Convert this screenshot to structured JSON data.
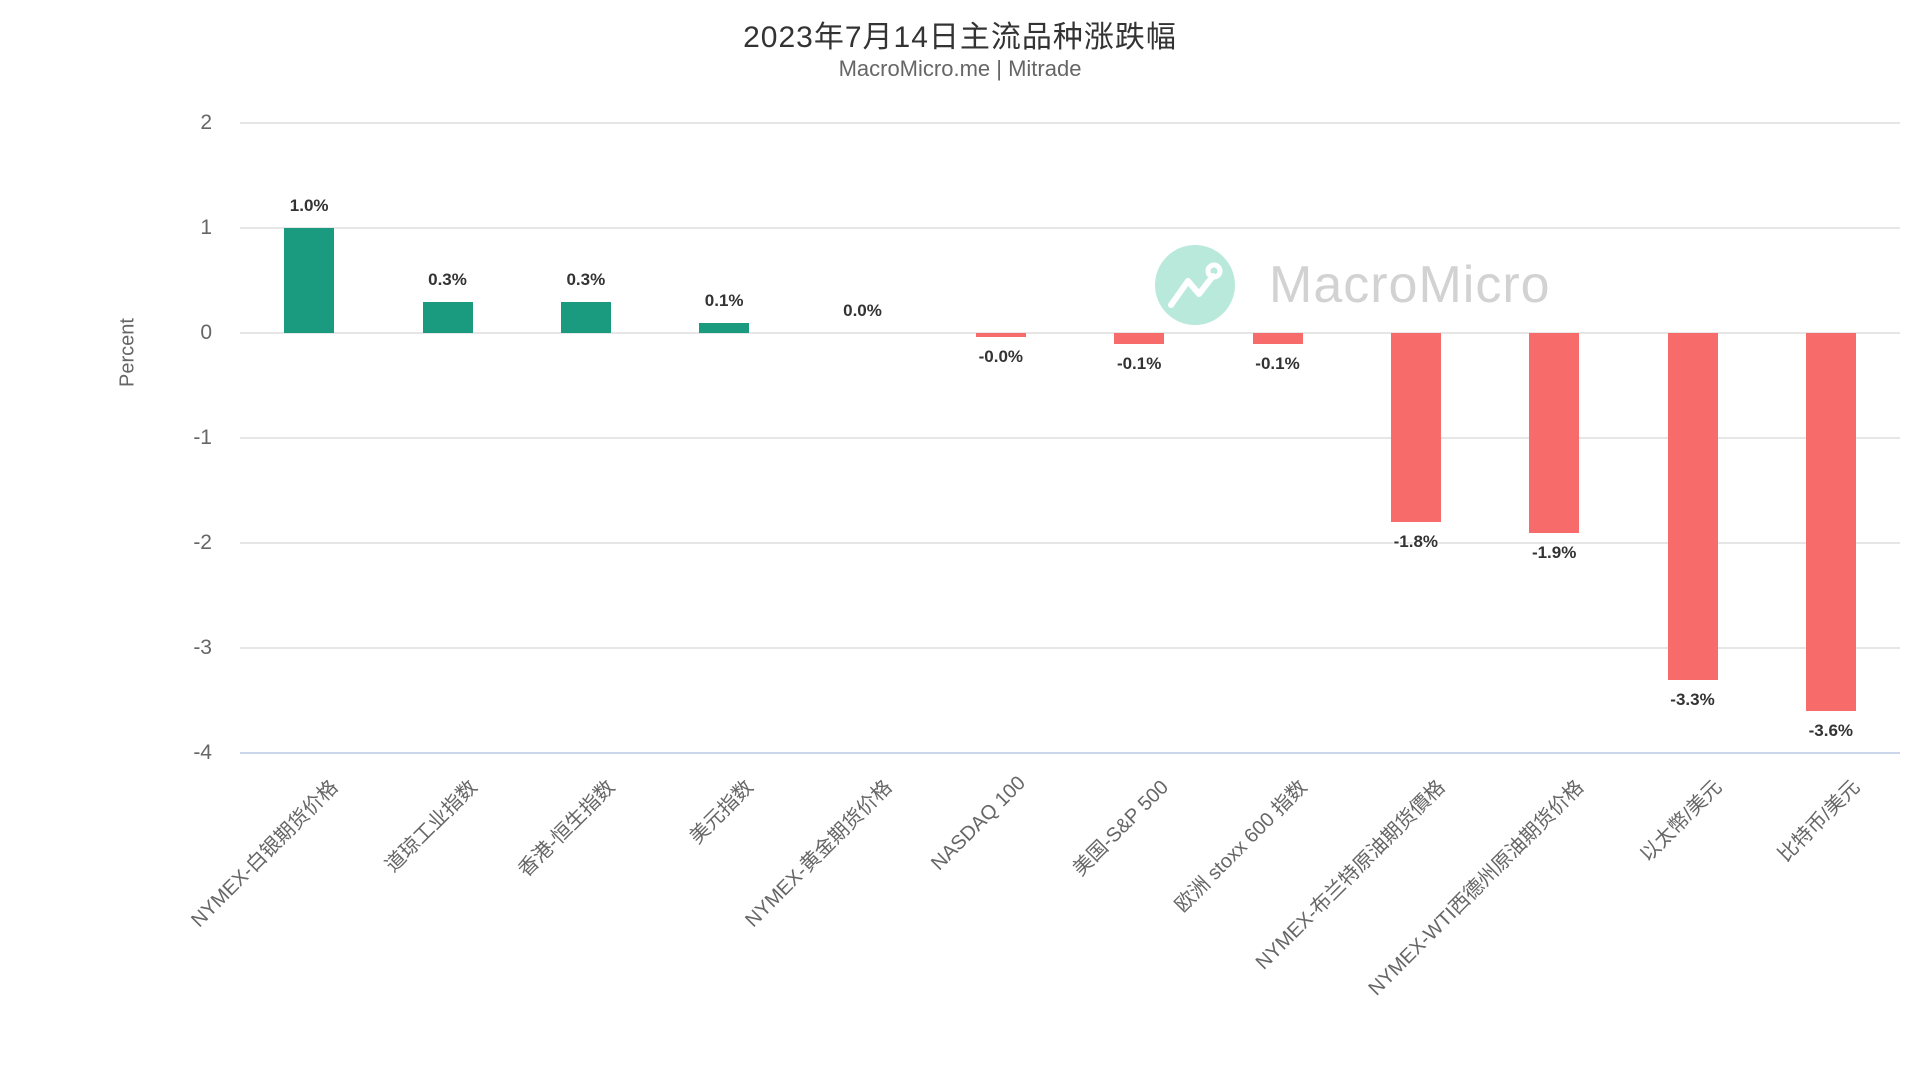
{
  "watermark": {
    "brand": "MacroMicro",
    "icon": "line-chart-logo-icon"
  },
  "chart_data": {
    "type": "bar",
    "title": "2023年7月14日主流品种涨跌幅",
    "subtitle": "MacroMicro.me | Mitrade",
    "xlabel": "",
    "ylabel": "Percent",
    "ylim": [
      -4,
      2
    ],
    "ytick_interval": 1,
    "yticks": [
      "2",
      "1",
      "0",
      "-1",
      "-2",
      "-3",
      "-4"
    ],
    "grid": true,
    "legend": "none",
    "categories": [
      "NYMEX-白银期货价格",
      "道琼工业指数",
      "香港-恒生指数",
      "美元指数",
      "NYMEX-黄金期货价格",
      "NASDAQ 100",
      "美国-S&P 500",
      "欧洲 stoxx 600 指数",
      "NYMEX-布兰特原油期货價格",
      "NYMEX-WTI西德州原油期货价格",
      "以太幣/美元",
      "比特币/美元"
    ],
    "values": [
      1.0,
      0.3,
      0.3,
      0.1,
      0.0,
      -0.0,
      -0.1,
      -0.1,
      -1.8,
      -1.9,
      -3.3,
      -3.6
    ],
    "labels": [
      "1.0%",
      "0.3%",
      "0.3%",
      "0.1%",
      "0.0%",
      "-0.0%",
      "-0.1%",
      "-0.1%",
      "-1.8%",
      "-1.9%",
      "-3.3%",
      "-3.6%"
    ],
    "colors": {
      "positive": "#1a9a7e",
      "negative": "#f76b6b",
      "gridline": "#e6e6e6",
      "axis_line": "#ccd6eb",
      "text_muted": "#666666",
      "text_dark": "#333333"
    }
  }
}
